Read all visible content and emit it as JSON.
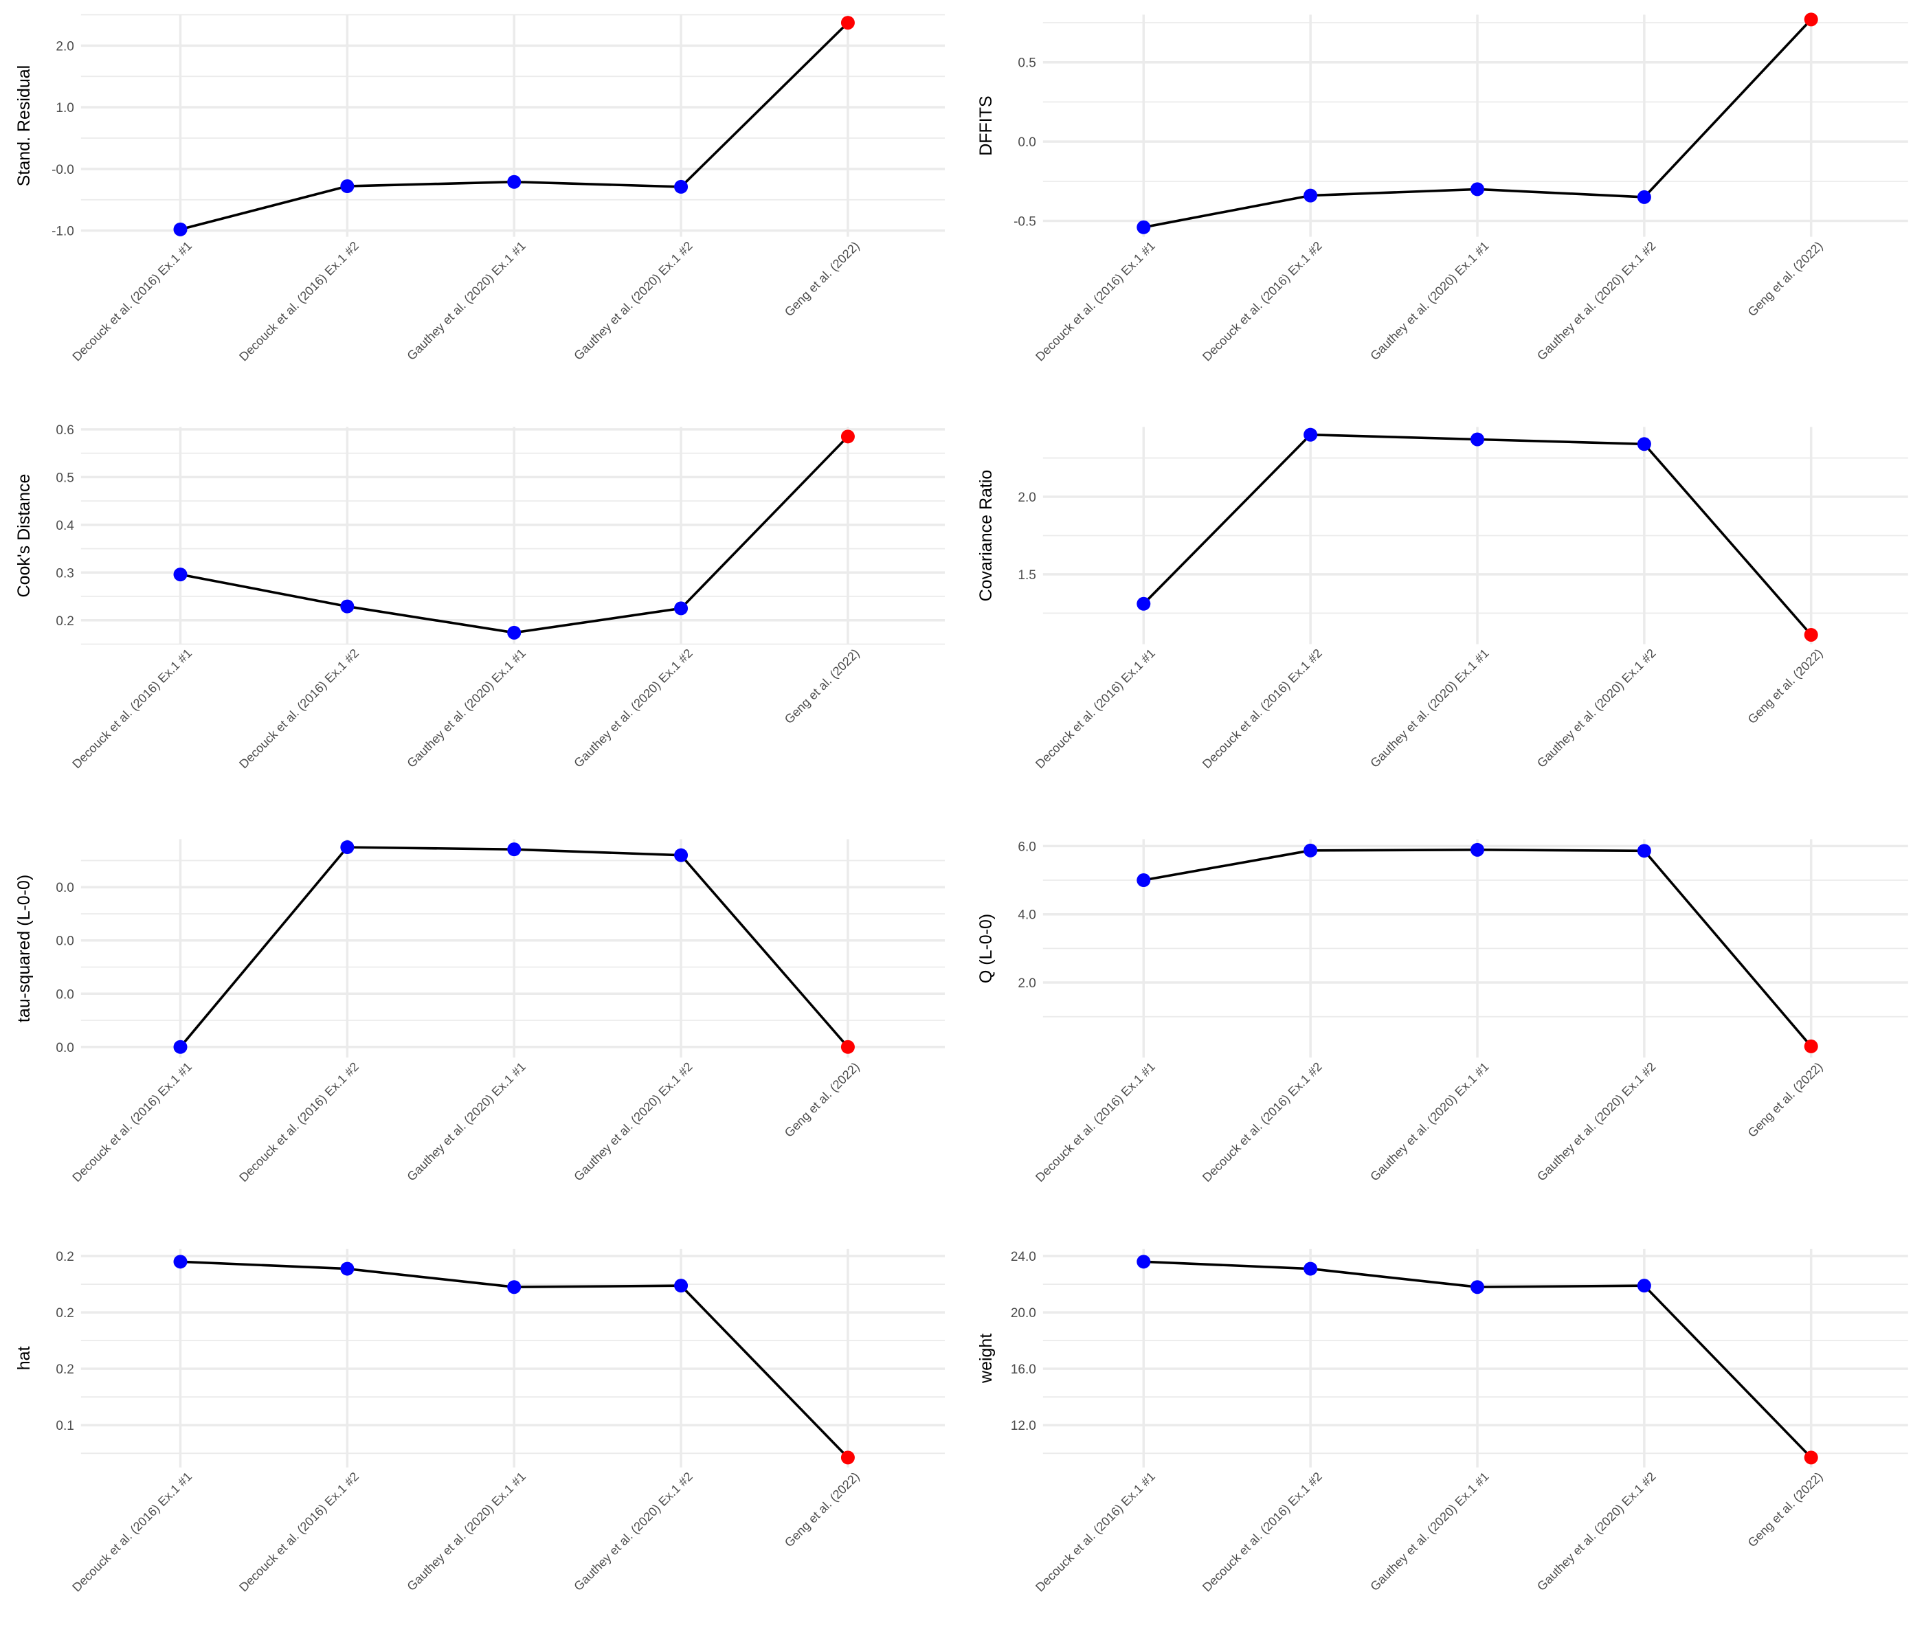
{
  "chart_data": [
    {
      "type": "line",
      "ylabel": "Stand. Residual",
      "categories": [
        "Decouck et al. (2016) Ex.1 #1",
        "Decouck et al. (2016) Ex.1 #2",
        "Gauthey et al. (2020) Ex.1 #1",
        "Gauthey et al. (2020) Ex.1 #2",
        "Geng et al. (2022)"
      ],
      "values": [
        -0.98,
        -0.28,
        -0.21,
        -0.29,
        2.37
      ],
      "point_colors": [
        "#0000ff",
        "#0000ff",
        "#0000ff",
        "#0000ff",
        "#ff0000"
      ],
      "yticks": [
        -1.0,
        0.0,
        1.0,
        2.0
      ],
      "ytick_labels": [
        "-1.0",
        "-0.0",
        "1.0",
        "2.0"
      ],
      "ylim": [
        -1.1,
        2.5
      ]
    },
    {
      "type": "line",
      "ylabel": "DFFITS",
      "categories": [
        "Decouck et al. (2016) Ex.1 #1",
        "Decouck et al. (2016) Ex.1 #2",
        "Gauthey et al. (2020) Ex.1 #1",
        "Gauthey et al. (2020) Ex.1 #2",
        "Geng et al. (2022)"
      ],
      "values": [
        -0.54,
        -0.34,
        -0.3,
        -0.35,
        0.77
      ],
      "point_colors": [
        "#0000ff",
        "#0000ff",
        "#0000ff",
        "#0000ff",
        "#ff0000"
      ],
      "yticks": [
        -0.5,
        0.0,
        0.5
      ],
      "ytick_labels": [
        "-0.5",
        "0.0",
        "0.5"
      ],
      "ylim": [
        -0.6,
        0.8
      ]
    },
    {
      "type": "line",
      "ylabel": "Cook's Distance",
      "categories": [
        "Decouck et al. (2016) Ex.1 #1",
        "Decouck et al. (2016) Ex.1 #2",
        "Gauthey et al. (2020) Ex.1 #1",
        "Gauthey et al. (2020) Ex.1 #2",
        "Geng et al. (2022)"
      ],
      "values": [
        0.296,
        0.229,
        0.174,
        0.225,
        0.585
      ],
      "point_colors": [
        "#0000ff",
        "#0000ff",
        "#0000ff",
        "#0000ff",
        "#ff0000"
      ],
      "yticks": [
        0.2,
        0.3,
        0.4,
        0.5,
        0.6
      ],
      "ytick_labels": [
        "0.2",
        "0.3",
        "0.4",
        "0.5",
        "0.6"
      ],
      "ylim": [
        0.15,
        0.605
      ]
    },
    {
      "type": "line",
      "ylabel": "Covariance Ratio",
      "categories": [
        "Decouck et al. (2016) Ex.1 #1",
        "Decouck et al. (2016) Ex.1 #2",
        "Gauthey et al. (2020) Ex.1 #1",
        "Gauthey et al. (2020) Ex.1 #2",
        "Geng et al. (2022)"
      ],
      "values": [
        1.31,
        2.4,
        2.37,
        2.34,
        1.11
      ],
      "point_colors": [
        "#0000ff",
        "#0000ff",
        "#0000ff",
        "#0000ff",
        "#ff0000"
      ],
      "yticks": [
        1.5,
        2.0
      ],
      "ytick_labels": [
        "1.5",
        "2.0"
      ],
      "ylim": [
        1.05,
        2.45
      ]
    },
    {
      "type": "line",
      "ylabel": "tau-squared (L-0-0)",
      "categories": [
        "Decouck et al. (2016) Ex.1 #1",
        "Decouck et al. (2016) Ex.1 #2",
        "Gauthey et al. (2020) Ex.1 #1",
        "Gauthey et al. (2020) Ex.1 #2",
        "Geng et al. (2022)"
      ],
      "values": [
        0.0,
        0.0375,
        0.0371,
        0.036,
        0.0
      ],
      "point_colors": [
        "#0000ff",
        "#0000ff",
        "#0000ff",
        "#0000ff",
        "#ff0000"
      ],
      "yticks": [
        0.0,
        0.01,
        0.02,
        0.03
      ],
      "ytick_labels": [
        "0.0",
        "0.0",
        "0.0",
        "0.0"
      ],
      "ylim": [
        -0.002,
        0.039
      ]
    },
    {
      "type": "line",
      "ylabel": "Q (L-0-0)",
      "categories": [
        "Decouck et al. (2016) Ex.1 #1",
        "Decouck et al. (2016) Ex.1 #2",
        "Gauthey et al. (2020) Ex.1 #1",
        "Gauthey et al. (2020) Ex.1 #2",
        "Geng et al. (2022)"
      ],
      "values": [
        5.0,
        5.87,
        5.89,
        5.86,
        0.13
      ],
      "point_colors": [
        "#0000ff",
        "#0000ff",
        "#0000ff",
        "#0000ff",
        "#ff0000"
      ],
      "yticks": [
        2.0,
        4.0,
        6.0
      ],
      "ytick_labels": [
        "2.0",
        "4.0",
        "6.0"
      ],
      "ylim": [
        -0.2,
        6.2
      ]
    },
    {
      "type": "line",
      "ylabel": "hat",
      "categories": [
        "Decouck et al. (2016) Ex.1 #1",
        "Decouck et al. (2016) Ex.1 #2",
        "Gauthey et al. (2020) Ex.1 #1",
        "Gauthey et al. (2020) Ex.1 #2",
        "Geng et al. (2022)"
      ],
      "values": [
        0.236,
        0.231,
        0.218,
        0.219,
        0.097
      ],
      "point_colors": [
        "#0000ff",
        "#0000ff",
        "#0000ff",
        "#0000ff",
        "#ff0000"
      ],
      "yticks": [
        0.12,
        0.16,
        0.2,
        0.24
      ],
      "ytick_labels": [
        "0.1",
        "0.2",
        "0.2",
        "0.2"
      ],
      "ylim": [
        0.09,
        0.245
      ]
    },
    {
      "type": "line",
      "ylabel": "weight",
      "categories": [
        "Decouck et al. (2016) Ex.1 #1",
        "Decouck et al. (2016) Ex.1 #2",
        "Gauthey et al. (2020) Ex.1 #1",
        "Gauthey et al. (2020) Ex.1 #2",
        "Geng et al. (2022)"
      ],
      "values": [
        23.6,
        23.1,
        21.8,
        21.9,
        9.7
      ],
      "point_colors": [
        "#0000ff",
        "#0000ff",
        "#0000ff",
        "#0000ff",
        "#ff0000"
      ],
      "yticks": [
        12.0,
        16.0,
        20.0,
        24.0
      ],
      "ytick_labels": [
        "12.0",
        "16.0",
        "20.0",
        "24.0"
      ],
      "ylim": [
        9.0,
        24.5
      ]
    }
  ]
}
